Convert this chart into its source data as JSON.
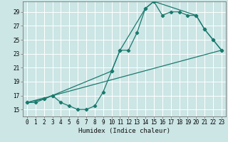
{
  "xlabel": "Humidex (Indice chaleur)",
  "bg_color": "#cce5e5",
  "grid_color": "#ffffff",
  "line_color": "#1a7a6e",
  "xlim": [
    -0.5,
    23.5
  ],
  "ylim": [
    14.0,
    30.5
  ],
  "xticks": [
    0,
    1,
    2,
    3,
    4,
    5,
    6,
    7,
    8,
    9,
    10,
    11,
    12,
    13,
    14,
    15,
    16,
    17,
    18,
    19,
    20,
    21,
    22,
    23
  ],
  "yticks": [
    15,
    17,
    19,
    21,
    23,
    25,
    27,
    29
  ],
  "curve1_x": [
    0,
    1,
    2,
    3,
    4,
    5,
    6,
    7,
    8,
    9,
    10,
    11,
    12,
    13,
    14,
    15,
    16,
    17,
    18,
    19,
    20,
    21,
    22,
    23
  ],
  "curve1_y": [
    16.0,
    16.0,
    16.5,
    17.0,
    16.0,
    15.5,
    15.0,
    15.0,
    15.5,
    17.5,
    20.5,
    23.5,
    23.5,
    26.0,
    29.5,
    30.5,
    28.5,
    29.0,
    29.0,
    28.5,
    28.5,
    26.5,
    25.0,
    23.5
  ],
  "curve2_x": [
    0,
    2,
    3,
    10,
    11,
    14,
    15,
    20,
    21,
    22,
    23
  ],
  "curve2_y": [
    16.0,
    16.5,
    17.0,
    20.5,
    23.5,
    29.5,
    30.5,
    28.5,
    26.5,
    25.0,
    23.5
  ],
  "curve3_x": [
    0,
    23
  ],
  "curve3_y": [
    16.0,
    23.5
  ]
}
